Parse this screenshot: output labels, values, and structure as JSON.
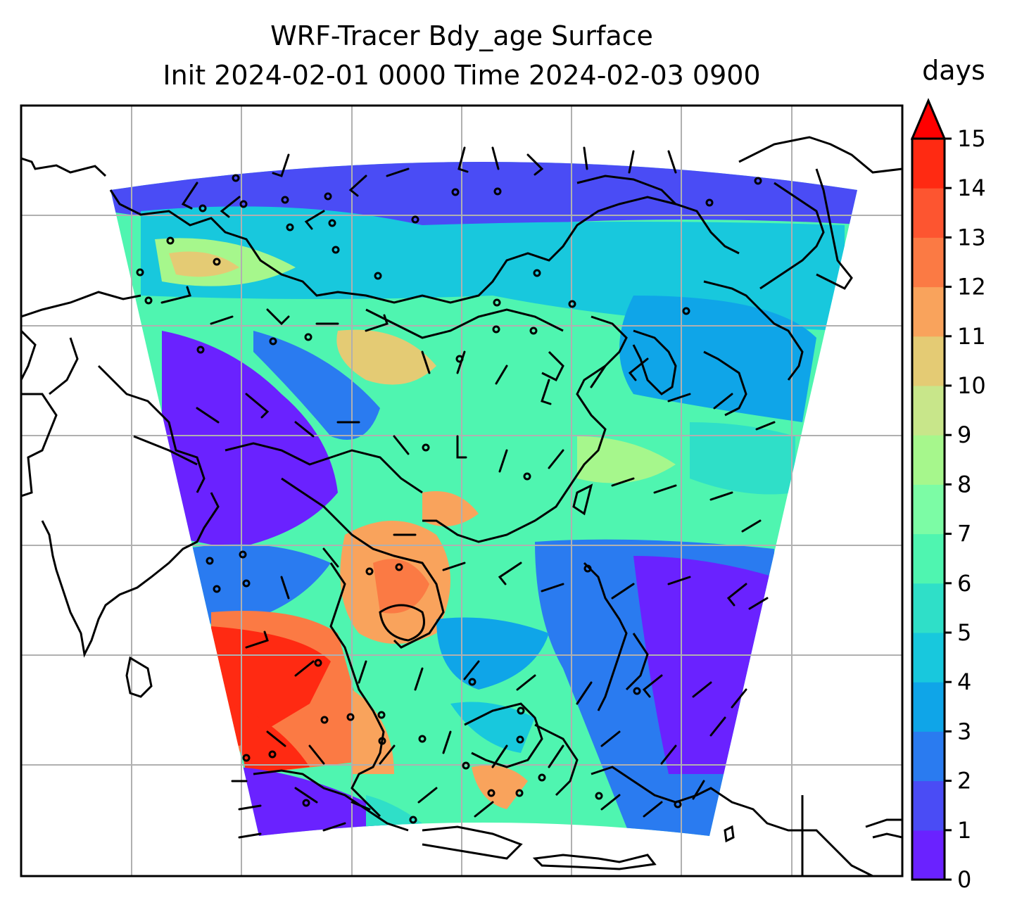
{
  "title_line1": "WRF-Tracer Bdy_age Surface",
  "title_line2": "Init 2024-02-01 0000 Time 2024-02-03 0900",
  "colorbar": {
    "label": "days",
    "ticks": [
      "0",
      "1",
      "2",
      "3",
      "4",
      "5",
      "6",
      "7",
      "8",
      "9",
      "10",
      "11",
      "12",
      "13",
      "14",
      "15"
    ],
    "colors": [
      "#6a22ff",
      "#4a4cf5",
      "#2a7bf0",
      "#0fa5e8",
      "#18c8dd",
      "#2fdfc8",
      "#4ff5b0",
      "#7cfca5",
      "#a6f78c",
      "#c8e68a",
      "#e4cb74",
      "#f9a35c",
      "#fb7a44",
      "#fd5530",
      "#ff2a12"
    ],
    "extend": "max",
    "extend_color": "#ff0000"
  },
  "map": {
    "gridlines": true,
    "coastlines": true,
    "overlay": "wind barbs"
  }
}
